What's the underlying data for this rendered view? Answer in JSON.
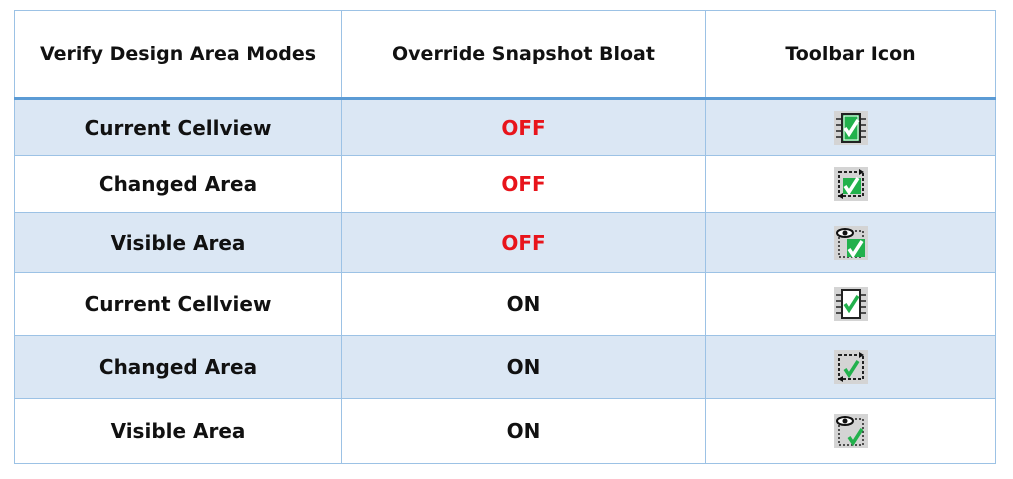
{
  "table": {
    "headers": [
      "Verify Design Area Modes",
      "Override Snapshot Bloat",
      "Toolbar Icon"
    ],
    "rows": [
      {
        "mode": "Current Cellview",
        "bloat": "OFF",
        "icon": "chip-check-filled-icon"
      },
      {
        "mode": "Changed Area",
        "bloat": "OFF",
        "icon": "changed-area-check-filled-icon"
      },
      {
        "mode": "Visible Area",
        "bloat": "OFF",
        "icon": "eye-area-check-filled-icon"
      },
      {
        "mode": "Current Cellview",
        "bloat": "ON",
        "icon": "chip-check-icon"
      },
      {
        "mode": "Changed Area",
        "bloat": "ON",
        "icon": "changed-area-check-icon"
      },
      {
        "mode": "Visible Area",
        "bloat": "ON",
        "icon": "eye-area-check-icon"
      }
    ]
  },
  "colors": {
    "off": "#e8141b",
    "on": "#111111",
    "row_alt": "#dbe7f4",
    "border": "#5b9bd5",
    "check_green": "#22b14c"
  }
}
